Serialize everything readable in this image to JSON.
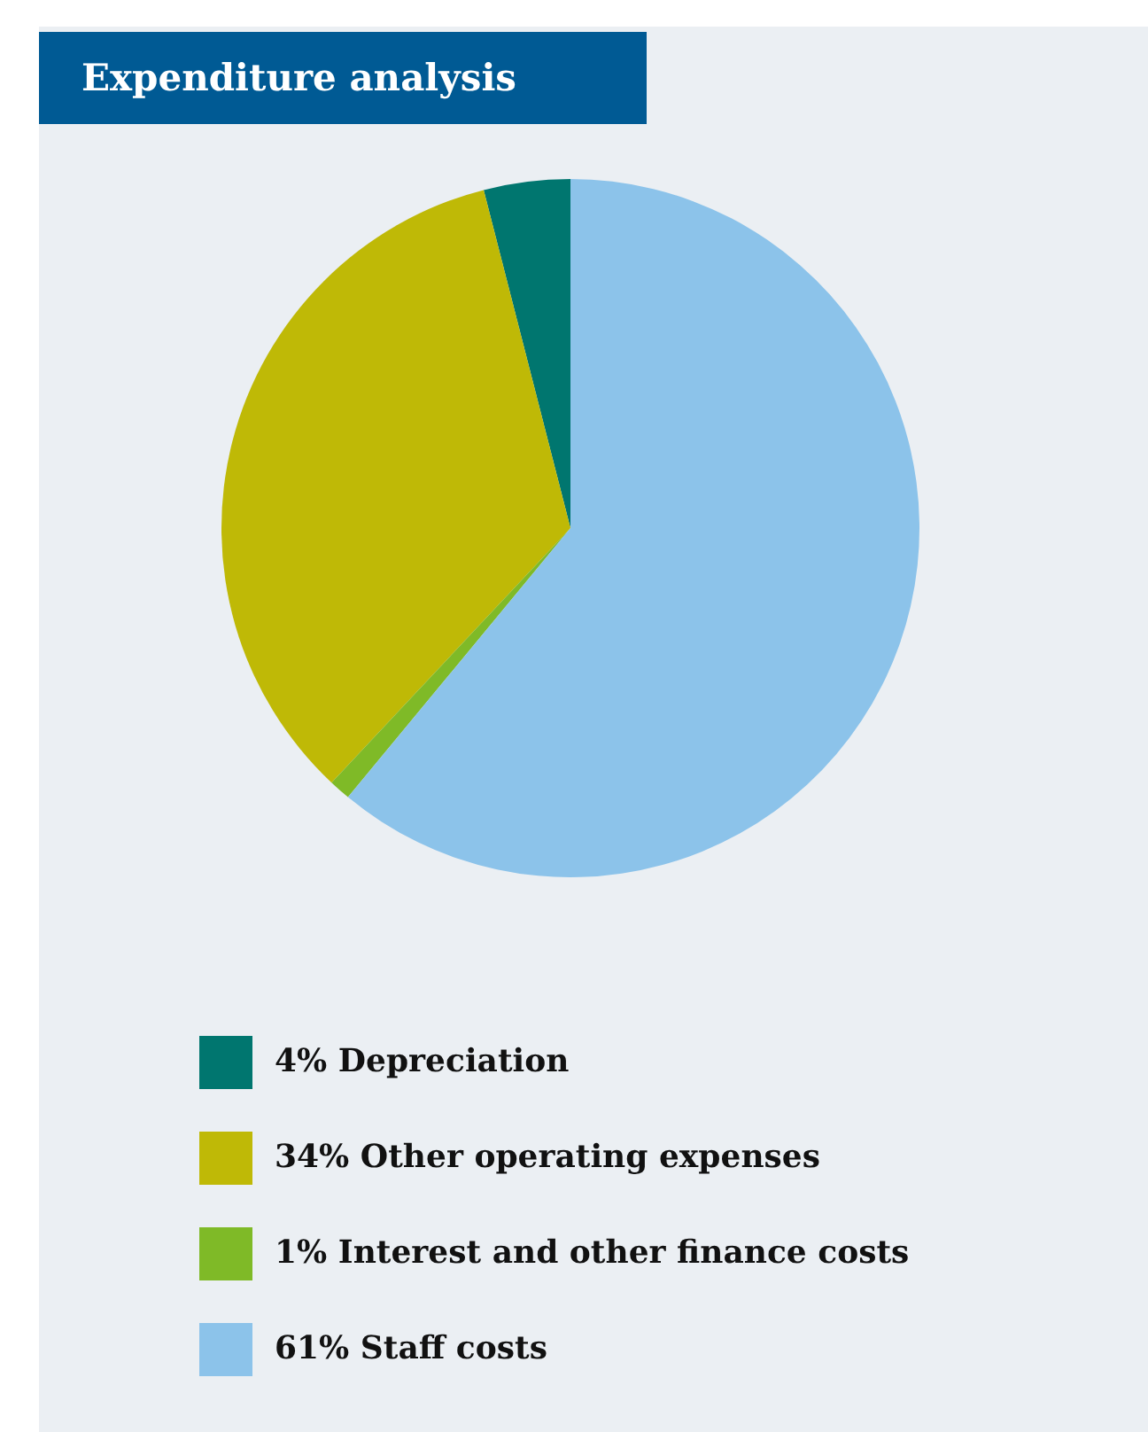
{
  "chart_data": {
    "type": "pie",
    "title": "Expenditure analysis",
    "categories": [
      "4% Depreciation",
      "34% Other operating expenses",
      "1% Interest and other finance costs",
      "61% Staff costs"
    ],
    "values": [
      4,
      34,
      1,
      61
    ],
    "colors": [
      "#00766f",
      "#bfb906",
      "#7fba27",
      "#8cc3ea"
    ],
    "legend": "bottom"
  }
}
